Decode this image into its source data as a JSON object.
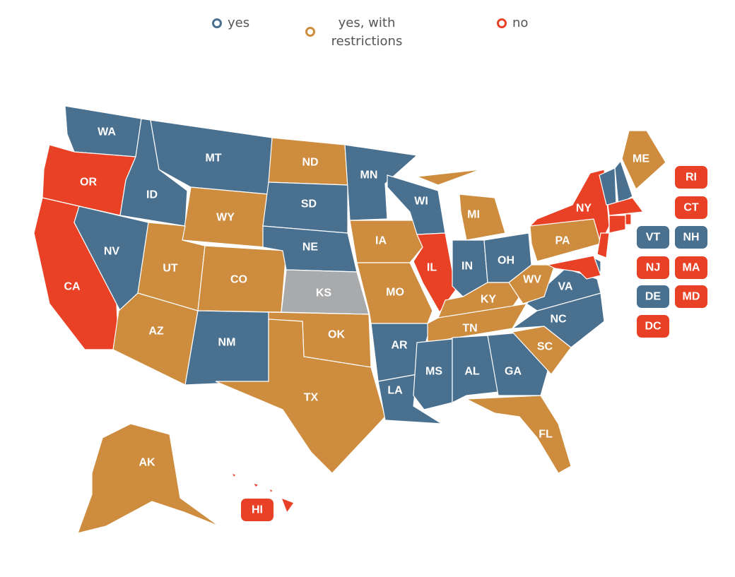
{
  "legend": [
    {
      "label": "yes",
      "color": "#4a7090"
    },
    {
      "label": "yes, with restrictions",
      "color": "#cd8c3e"
    },
    {
      "label": "no",
      "color": "#e84125"
    }
  ],
  "states": [
    {
      "abbr": "WA",
      "color": "#4a7090"
    },
    {
      "abbr": "OR",
      "color": "#e84125"
    },
    {
      "abbr": "CA",
      "color": "#e84125"
    },
    {
      "abbr": "NV",
      "color": "#4a7090"
    },
    {
      "abbr": "ID",
      "color": "#4a7090"
    },
    {
      "abbr": "MT",
      "color": "#4a7090"
    },
    {
      "abbr": "WY",
      "color": "#cd8c3e"
    },
    {
      "abbr": "UT",
      "color": "#cd8c3e"
    },
    {
      "abbr": "CO",
      "color": "#cd8c3e"
    },
    {
      "abbr": "AZ",
      "color": "#cd8c3e"
    },
    {
      "abbr": "NM",
      "color": "#4a7090"
    },
    {
      "abbr": "ND",
      "color": "#cd8c3e"
    },
    {
      "abbr": "SD",
      "color": "#4a7090"
    },
    {
      "abbr": "NE",
      "color": "#4a7090"
    },
    {
      "abbr": "KS",
      "color": "#a8aaac"
    },
    {
      "abbr": "OK",
      "color": "#cd8c3e"
    },
    {
      "abbr": "TX",
      "color": "#cd8c3e"
    },
    {
      "abbr": "MN",
      "color": "#4a7090"
    },
    {
      "abbr": "IA",
      "color": "#cd8c3e"
    },
    {
      "abbr": "MO",
      "color": "#cd8c3e"
    },
    {
      "abbr": "AR",
      "color": "#4a7090"
    },
    {
      "abbr": "LA",
      "color": "#4a7090"
    },
    {
      "abbr": "WI",
      "color": "#4a7090"
    },
    {
      "abbr": "IL",
      "color": "#e84125"
    },
    {
      "abbr": "MI",
      "color": "#cd8c3e"
    },
    {
      "abbr": "IN",
      "color": "#4a7090"
    },
    {
      "abbr": "OH",
      "color": "#4a7090"
    },
    {
      "abbr": "KY",
      "color": "#cd8c3e"
    },
    {
      "abbr": "TN",
      "color": "#cd8c3e"
    },
    {
      "abbr": "MS",
      "color": "#4a7090"
    },
    {
      "abbr": "AL",
      "color": "#4a7090"
    },
    {
      "abbr": "GA",
      "color": "#4a7090"
    },
    {
      "abbr": "FL",
      "color": "#cd8c3e"
    },
    {
      "abbr": "SC",
      "color": "#cd8c3e"
    },
    {
      "abbr": "NC",
      "color": "#4a7090"
    },
    {
      "abbr": "VA",
      "color": "#4a7090"
    },
    {
      "abbr": "WV",
      "color": "#cd8c3e"
    },
    {
      "abbr": "PA",
      "color": "#cd8c3e"
    },
    {
      "abbr": "NY",
      "color": "#e84125"
    },
    {
      "abbr": "ME",
      "color": "#cd8c3e"
    },
    {
      "abbr": "AK",
      "color": "#cd8c3e"
    },
    {
      "abbr": "NJ",
      "color": "#e84125"
    },
    {
      "abbr": "DE",
      "color": "#4a7090"
    },
    {
      "abbr": "MD",
      "color": "#e84125"
    },
    {
      "abbr": "VT",
      "color": "#4a7090"
    },
    {
      "abbr": "NH",
      "color": "#4a7090"
    },
    {
      "abbr": "MA",
      "color": "#e84125"
    },
    {
      "abbr": "CT",
      "color": "#e84125"
    },
    {
      "abbr": "RI",
      "color": "#e84125"
    },
    {
      "abbr": "HI",
      "color": "#e84125"
    },
    {
      "abbr": "DC",
      "color": "#e84125"
    }
  ]
}
